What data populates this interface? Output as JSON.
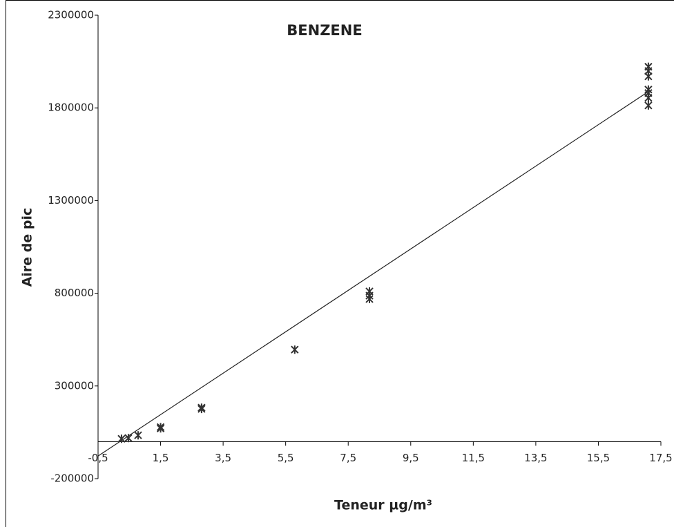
{
  "chart_data": {
    "type": "scatter",
    "title": "BENZENE",
    "x_label": "Teneur µg/m³",
    "y_label": "Aire de pic",
    "xlim": [
      -0.5,
      17.5
    ],
    "xticks": [
      {
        "value": -0.5,
        "label": "-0,5"
      },
      {
        "value": 1.5,
        "label": "1,5"
      },
      {
        "value": 3.5,
        "label": "3,5"
      },
      {
        "value": 5.5,
        "label": "5,5"
      },
      {
        "value": 7.5,
        "label": "7,5"
      },
      {
        "value": 9.5,
        "label": "9,5"
      },
      {
        "value": 11.5,
        "label": "11,5"
      },
      {
        "value": 13.5,
        "label": "13,5"
      },
      {
        "value": 15.5,
        "label": "15,5"
      },
      {
        "value": 17.5,
        "label": "17,5"
      }
    ],
    "ylim": [
      -200000,
      2300000
    ],
    "yticks": [
      -200000,
      300000,
      800000,
      1300000,
      1800000,
      2300000
    ],
    "color": "#333333",
    "x": [
      0.25,
      0.47,
      0.78,
      1.5,
      1.5,
      2.81,
      2.81,
      5.79,
      8.18,
      8.18,
      8.18,
      17.1,
      17.1,
      17.1,
      17.1,
      17.1,
      17.1,
      17.1
    ],
    "values": [
      15000,
      19000,
      34000,
      78000,
      71000,
      183000,
      176000,
      496000,
      810000,
      787000,
      769000,
      2022000,
      1999000,
      1970000,
      1899000,
      1880000,
      1854000,
      1813000
    ],
    "trendline": {
      "x": [
        -0.5,
        17.1
      ],
      "y": [
        -78000,
        1888000
      ]
    }
  }
}
